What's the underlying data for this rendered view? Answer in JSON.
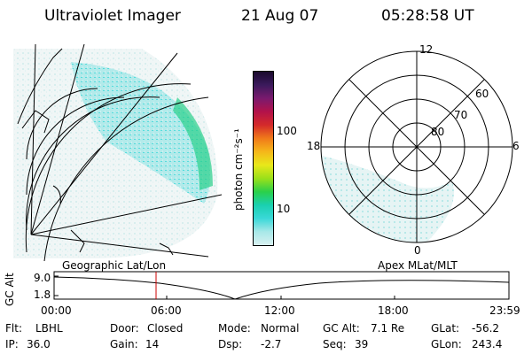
{
  "header": {
    "title": "Ultraviolet Imager",
    "date": "21 Aug 07",
    "time": "05:28:58 UT"
  },
  "colorbar": {
    "label": "photon cm⁻²s⁻¹",
    "ticks": [
      "100",
      "10"
    ],
    "colors": [
      "#1a0a2e",
      "#3b1a5c",
      "#7a1a6e",
      "#b3124a",
      "#d42a2a",
      "#f07a1a",
      "#f5b71a",
      "#e8e81a",
      "#9ae01a",
      "#2ad04a",
      "#1ad0b0",
      "#3ad8d8",
      "#a8e8e8",
      "#d8f0f0"
    ]
  },
  "polar": {
    "mlt_labels": [
      "12",
      "18",
      "6",
      "0"
    ],
    "lat_labels": [
      "60",
      "70",
      "80"
    ]
  },
  "timeline": {
    "left_label": "Geographic Lat/Lon",
    "right_label": "Apex MLat/MLT",
    "axis_title": "GC Alt",
    "y_ticks": [
      "9.0",
      "1.8"
    ],
    "x_ticks": [
      "00:00",
      "06:00",
      "12:00",
      "18:00",
      "23:59"
    ],
    "current_marker_color": "#cc0000"
  },
  "info": {
    "row1": [
      {
        "label": "Flt:",
        "value": "LBHL"
      },
      {
        "label": "Door:",
        "value": "Closed"
      },
      {
        "label": "Mode:",
        "value": "Normal"
      },
      {
        "label": "GC Alt:",
        "value": "7.1 Re"
      },
      {
        "label": "GLat:",
        "value": "-56.2"
      }
    ],
    "row2": [
      {
        "label": "IP:",
        "value": "36.0"
      },
      {
        "label": "Gain:",
        "value": "14"
      },
      {
        "label": "Dsp:",
        "value": "-2.7"
      },
      {
        "label": "Seq:",
        "value": "39"
      },
      {
        "label": "GLon:",
        "value": "243.4"
      }
    ]
  }
}
